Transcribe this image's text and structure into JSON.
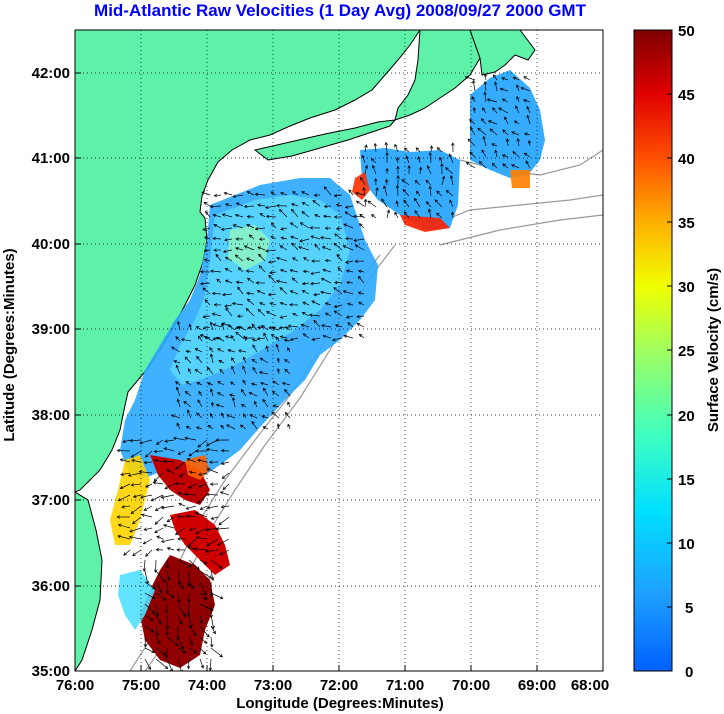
{
  "title": "Mid-Atlantic Raw Velocities (1 Day Avg) 2008/09/27 2000 GMT",
  "map": {
    "xlabel": "Longitude (Degrees:Minutes)",
    "ylabel": "Latitude (Degrees:Minutes)",
    "x_ticks": [
      "76:00",
      "75:00",
      "74:00",
      "73:00",
      "72:00",
      "71:00",
      "70:00",
      "69:00",
      "68:00"
    ],
    "y_ticks": [
      "42:00",
      "41:00",
      "40:00",
      "39:00",
      "38:00",
      "37:00",
      "36:00",
      "35:00"
    ],
    "lon_range": [
      -76,
      -68
    ],
    "lat_range": [
      35,
      42.5
    ],
    "grid": true,
    "land_color": "#5ef2a8",
    "coast_color": "#000000",
    "bathymetry_color": "#999999"
  },
  "colorbar": {
    "label": "Surface Velocity (cm/s)",
    "ticks": [
      "50",
      "45",
      "40",
      "35",
      "30",
      "25",
      "20",
      "15",
      "10",
      "5",
      "0"
    ],
    "range": [
      0,
      50
    ],
    "colormap": "jet"
  }
}
